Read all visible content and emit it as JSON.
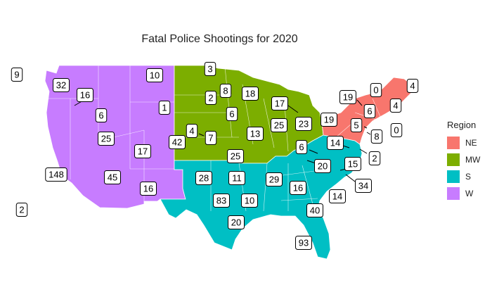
{
  "title": "Fatal Police Shootings for 2020",
  "legend": {
    "title": "Region",
    "items": [
      {
        "key": "NE",
        "label": "NE",
        "color": "#F8766D"
      },
      {
        "key": "MW",
        "label": "MW",
        "color": "#7CAE00"
      },
      {
        "key": "S",
        "label": "S",
        "color": "#00BFC4"
      },
      {
        "key": "W",
        "label": "W",
        "color": "#C77CFF"
      }
    ]
  },
  "map_data": {
    "type": "choropleth",
    "metric": "Fatal Police Shootings",
    "states": [
      {
        "state": "Alaska",
        "region": "W",
        "value": 9
      },
      {
        "state": "Hawaii",
        "region": "W",
        "value": 2
      },
      {
        "state": "Washington",
        "region": "W",
        "value": 32
      },
      {
        "state": "Oregon",
        "region": "W",
        "value": 16
      },
      {
        "state": "California",
        "region": "W",
        "value": 148
      },
      {
        "state": "Nevada",
        "region": "W",
        "value": 25
      },
      {
        "state": "Idaho",
        "region": "W",
        "value": 6
      },
      {
        "state": "Montana",
        "region": "W",
        "value": 10
      },
      {
        "state": "Wyoming",
        "region": "W",
        "value": 1
      },
      {
        "state": "Utah",
        "region": "W",
        "value": 17
      },
      {
        "state": "Colorado",
        "region": "W",
        "value": 42
      },
      {
        "state": "Arizona",
        "region": "W",
        "value": 45
      },
      {
        "state": "New Mexico",
        "region": "W",
        "value": 16
      },
      {
        "state": "North Dakota",
        "region": "MW",
        "value": 3
      },
      {
        "state": "South Dakota",
        "region": "MW",
        "value": 2
      },
      {
        "state": "Nebraska",
        "region": "MW",
        "value": 7
      },
      {
        "state": "Kansas",
        "region": "MW",
        "value": 4
      },
      {
        "state": "Minnesota",
        "region": "MW",
        "value": 8
      },
      {
        "state": "Iowa",
        "region": "MW",
        "value": 6
      },
      {
        "state": "Missouri",
        "region": "MW",
        "value": 25
      },
      {
        "state": "Wisconsin",
        "region": "MW",
        "value": 18
      },
      {
        "state": "Illinois",
        "region": "MW",
        "value": 13
      },
      {
        "state": "Michigan",
        "region": "MW",
        "value": 17
      },
      {
        "state": "Indiana",
        "region": "MW",
        "value": 25
      },
      {
        "state": "Ohio",
        "region": "MW",
        "value": 23
      },
      {
        "state": "Texas",
        "region": "S",
        "value": 83
      },
      {
        "state": "Oklahoma",
        "region": "S",
        "value": 28
      },
      {
        "state": "Arkansas",
        "region": "S",
        "value": 11
      },
      {
        "state": "Louisiana",
        "region": "S",
        "value": 20
      },
      {
        "state": "Mississippi",
        "region": "S",
        "value": 10
      },
      {
        "state": "Tennessee",
        "region": "S",
        "value": 29
      },
      {
        "state": "Kentucky",
        "region": "S",
        "value": 6
      },
      {
        "state": "Alabama",
        "region": "S",
        "value": 16
      },
      {
        "state": "Georgia",
        "region": "S",
        "value": 40
      },
      {
        "state": "Florida",
        "region": "S",
        "value": 93
      },
      {
        "state": "South Carolina",
        "region": "S",
        "value": 14
      },
      {
        "state": "North Carolina",
        "region": "S",
        "value": 34
      },
      {
        "state": "Virginia",
        "region": "S",
        "value": 15
      },
      {
        "state": "West Virginia",
        "region": "S",
        "value": 20
      },
      {
        "state": "Maryland",
        "region": "S",
        "value": 14
      },
      {
        "state": "Delaware",
        "region": "S",
        "value": 2
      },
      {
        "state": "Pennsylvania",
        "region": "NE",
        "value": 19
      },
      {
        "state": "New York",
        "region": "NE",
        "value": 19
      },
      {
        "state": "New Jersey",
        "region": "NE",
        "value": 5
      },
      {
        "state": "Connecticut",
        "region": "NE",
        "value": 8
      },
      {
        "state": "Rhode Island",
        "region": "NE",
        "value": 0
      },
      {
        "state": "Massachusetts",
        "region": "NE",
        "value": 4
      },
      {
        "state": "Vermont",
        "region": "NE",
        "value": 0
      },
      {
        "state": "New Hampshire",
        "region": "NE",
        "value": 6
      },
      {
        "state": "Maine",
        "region": "NE",
        "value": 4
      }
    ]
  }
}
